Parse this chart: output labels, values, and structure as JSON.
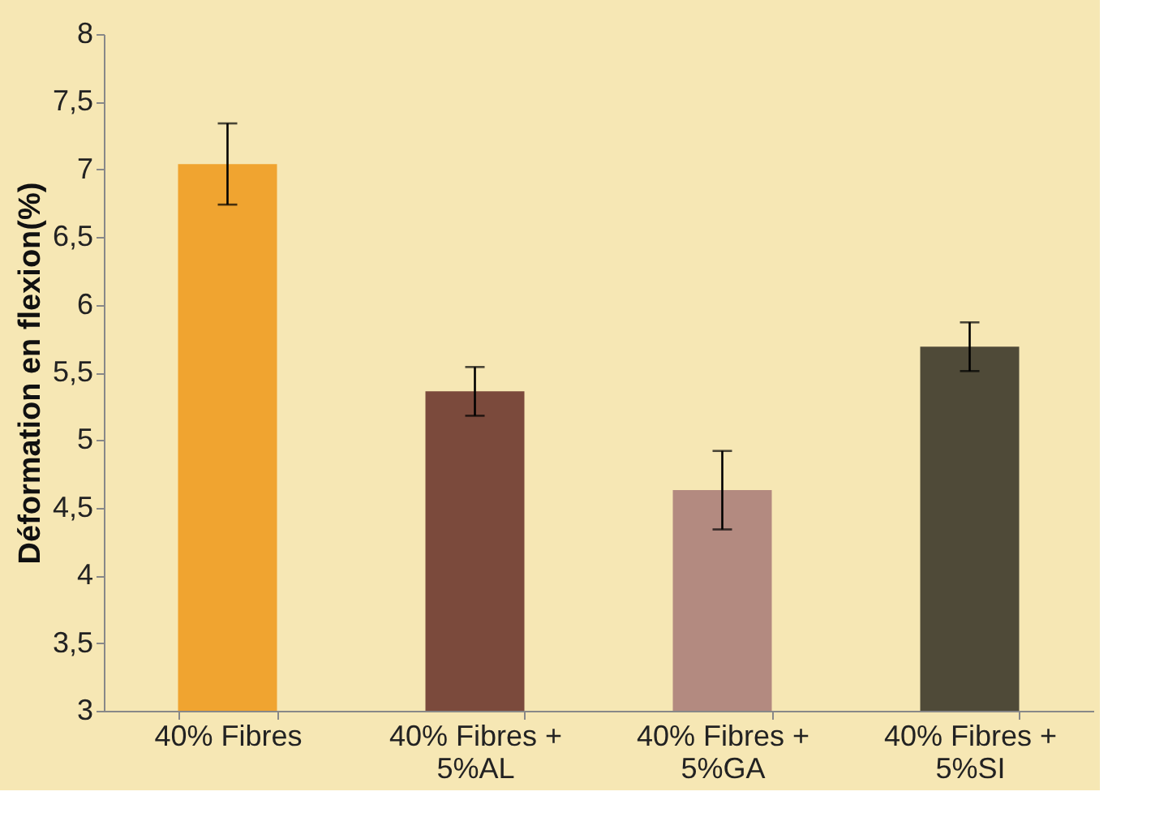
{
  "chart_data": {
    "type": "bar",
    "ylabel": "Déformation en flexion(%)",
    "categories": [
      "40% Fibres",
      "40% Fibres + 5%AL",
      "40% Fibres + 5%GA",
      "40% Fibres + 5%SI"
    ],
    "values": [
      7.04,
      5.36,
      4.63,
      5.69
    ],
    "colors": [
      "#f0a430",
      "#7b4a3c",
      "#b38a80",
      "#4f4a38"
    ],
    "errors": [
      0.3,
      0.18,
      0.29,
      0.18
    ],
    "ylim": [
      3,
      8
    ],
    "yticks": [
      3,
      {
        "value": 3.5,
        "label": "3,5"
      },
      4,
      {
        "value": 4.5,
        "label": "4,5"
      },
      5,
      {
        "value": 5.5,
        "label": "5,5"
      },
      6,
      {
        "value": 6.5,
        "label": "6,5"
      },
      7,
      {
        "value": 7.5,
        "label": "7,5"
      },
      8
    ],
    "grid": false,
    "legend": false
  }
}
